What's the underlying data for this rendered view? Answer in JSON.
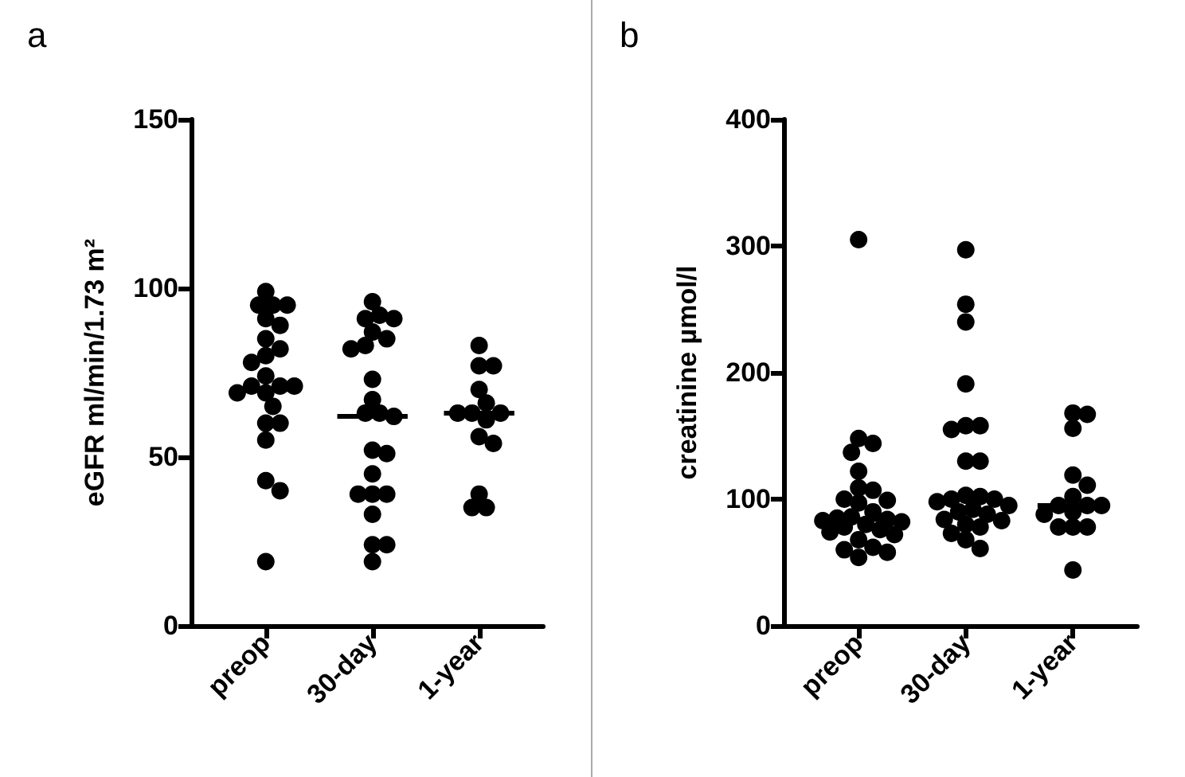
{
  "chart_data": [
    {
      "type": "box",
      "title": "a",
      "ylabel": "eGFR ml/min/1.73 m²",
      "categories": [
        "preop",
        "30-day",
        "1-year"
      ],
      "ylim": [
        0,
        150
      ],
      "yticks": [
        0,
        50,
        100,
        150
      ],
      "grid": false,
      "boxes": [
        {
          "low": 70,
          "q1": 70,
          "median": 70,
          "q3": 70,
          "high": 70
        },
        {
          "low": 62,
          "q1": 62,
          "median": 62,
          "q3": 62,
          "high": 62
        },
        {
          "low": 63,
          "q1": 63,
          "median": 63,
          "q3": 63,
          "high": 63
        }
      ],
      "series": [
        {
          "type": "scatter",
          "color": "#000000",
          "marker": "circle",
          "x": [
            "preop",
            "preop",
            "preop",
            "preop",
            "preop",
            "preop",
            "preop",
            "preop",
            "preop",
            "preop",
            "preop",
            "preop",
            "preop",
            "preop",
            "preop",
            "preop",
            "preop",
            "preop",
            "preop",
            "preop",
            "preop",
            "preop",
            "preop",
            "30-day",
            "30-day",
            "30-day",
            "30-day",
            "30-day",
            "30-day",
            "30-day",
            "30-day",
            "30-day",
            "30-day",
            "30-day",
            "30-day",
            "30-day",
            "30-day",
            "30-day",
            "30-day",
            "30-day",
            "30-day",
            "30-day",
            "30-day",
            "30-day",
            "30-day",
            "30-day",
            "1-year",
            "1-year",
            "1-year",
            "1-year",
            "1-year",
            "1-year",
            "1-year",
            "1-year",
            "1-year",
            "1-year",
            "1-year",
            "1-year",
            "1-year",
            "1-year"
          ],
          "values": [
            99,
            95,
            95,
            95,
            91,
            89,
            85,
            82,
            80,
            78,
            74,
            71,
            71,
            71,
            69,
            69,
            65,
            60,
            60,
            55,
            43,
            40,
            19,
            96,
            92,
            91,
            91,
            87,
            85,
            83,
            82,
            73,
            67,
            63,
            63,
            62,
            52,
            51,
            45,
            39,
            39,
            39,
            33,
            24,
            24,
            19,
            83,
            77,
            77,
            70,
            66,
            63,
            63,
            63,
            61,
            56,
            54,
            39,
            35,
            35
          ]
        }
      ]
    },
    {
      "type": "box",
      "title": "b",
      "ylabel": "creatinine µmol/l",
      "categories": [
        "preop",
        "30-day",
        "1-year"
      ],
      "ylim": [
        0,
        400
      ],
      "yticks": [
        0,
        100,
        200,
        300,
        400
      ],
      "grid": false,
      "boxes": [
        {
          "low": 84,
          "q1": 84,
          "median": 84,
          "q3": 84,
          "high": 84
        },
        {
          "low": 100,
          "q1": 100,
          "median": 100,
          "q3": 100,
          "high": 100
        },
        {
          "low": 95,
          "q1": 95,
          "median": 95,
          "q3": 95,
          "high": 95
        }
      ],
      "series": [
        {
          "type": "scatter",
          "color": "#000000",
          "marker": "circle",
          "x": [
            "preop",
            "preop",
            "preop",
            "preop",
            "preop",
            "preop",
            "preop",
            "preop",
            "preop",
            "preop",
            "preop",
            "preop",
            "preop",
            "preop",
            "preop",
            "preop",
            "preop",
            "preop",
            "preop",
            "preop",
            "preop",
            "preop",
            "preop",
            "preop",
            "preop",
            "preop",
            "30-day",
            "30-day",
            "30-day",
            "30-day",
            "30-day",
            "30-day",
            "30-day",
            "30-day",
            "30-day",
            "30-day",
            "30-day",
            "30-day",
            "30-day",
            "30-day",
            "30-day",
            "30-day",
            "30-day",
            "30-day",
            "30-day",
            "30-day",
            "30-day",
            "30-day",
            "30-day",
            "30-day",
            "30-day",
            "1-year",
            "1-year",
            "1-year",
            "1-year",
            "1-year",
            "1-year",
            "1-year",
            "1-year",
            "1-year",
            "1-year",
            "1-year",
            "1-year",
            "1-year",
            "1-year",
            "1-year"
          ],
          "values": [
            305,
            148,
            144,
            137,
            122,
            109,
            107,
            100,
            99,
            97,
            90,
            86,
            85,
            84,
            83,
            82,
            80,
            78,
            76,
            74,
            72,
            68,
            62,
            60,
            58,
            54,
            297,
            254,
            240,
            191,
            158,
            158,
            155,
            130,
            130,
            103,
            102,
            100,
            100,
            98,
            95,
            92,
            90,
            88,
            84,
            83,
            80,
            78,
            73,
            68,
            61,
            168,
            167,
            156,
            119,
            111,
            102,
            95,
            95,
            95,
            90,
            88,
            78,
            78,
            78,
            44
          ]
        }
      ]
    }
  ]
}
